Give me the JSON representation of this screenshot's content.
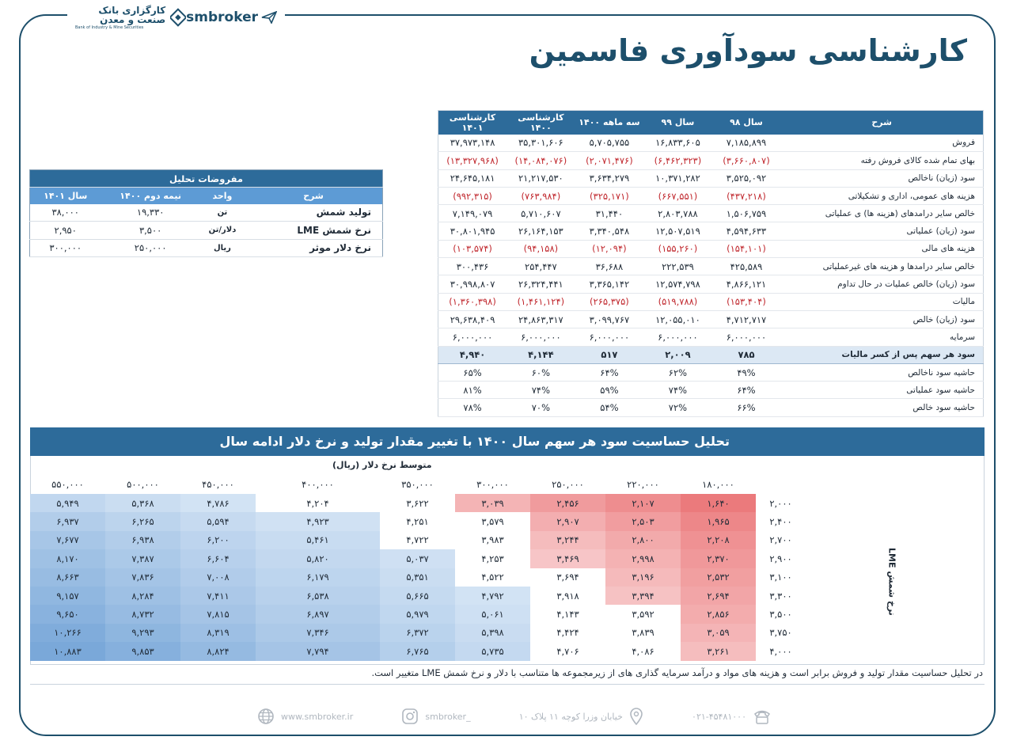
{
  "header": {
    "title": "کارشناسی سودآوری فاسمین",
    "bank_name_fa": "کارگزاری بانک صنعت و معدن",
    "bank_name_en": "Bank of Industry & Mine Securities",
    "brand": "smbroker"
  },
  "financials": {
    "headers": [
      "شرح",
      "سال ۹۸",
      "سال ۹۹",
      "سه ماهه ۱۴۰۰",
      "کارشناسی ۱۴۰۰",
      "کارشناسی ۱۴۰۱"
    ],
    "rows": [
      {
        "label": "فروش",
        "values": [
          "۷,۱۸۵,۸۹۹",
          "۱۶,۸۳۳,۶۰۵",
          "۵,۷۰۵,۷۵۵",
          "۳۵,۳۰۱,۶۰۶",
          "۳۷,۹۷۳,۱۴۸"
        ],
        "neg": false
      },
      {
        "label": "بهای تمام شده کالای فروش رفته",
        "values": [
          "(۳,۶۶۰,۸۰۷)",
          "(۶,۴۶۲,۳۲۳)",
          "(۲,۰۷۱,۴۷۶)",
          "(۱۴,۰۸۴,۰۷۶)",
          "(۱۳,۳۲۷,۹۶۸)"
        ],
        "neg": true
      },
      {
        "label": "سود (زیان) ناخالص",
        "values": [
          "۳,۵۲۵,۰۹۲",
          "۱۰,۳۷۱,۲۸۲",
          "۳,۶۳۴,۲۷۹",
          "۲۱,۲۱۷,۵۳۰",
          "۲۴,۶۴۵,۱۸۱"
        ],
        "neg": false
      },
      {
        "label": "هزینه های عمومی، اداری و تشکیلاتی",
        "values": [
          "(۴۳۷,۲۱۸)",
          "(۶۶۷,۵۵۱)",
          "(۳۲۵,۱۷۱)",
          "(۷۶۳,۹۸۴)",
          "(۹۹۲,۳۱۵)"
        ],
        "neg": true
      },
      {
        "label": "خالص سایر درامدهای (هزینه ها) ی عملیاتی",
        "values": [
          "۱,۵۰۶,۷۵۹",
          "۲,۸۰۳,۷۸۸",
          "۳۱,۴۴۰",
          "۵,۷۱۰,۶۰۷",
          "۷,۱۴۹,۰۷۹"
        ],
        "neg": false
      },
      {
        "label": "سود (زیان) عملیاتی",
        "values": [
          "۴,۵۹۴,۶۳۳",
          "۱۲,۵۰۷,۵۱۹",
          "۳,۳۴۰,۵۴۸",
          "۲۶,۱۶۴,۱۵۳",
          "۳۰,۸۰۱,۹۴۵"
        ],
        "neg": false
      },
      {
        "label": "هزینه های مالی",
        "values": [
          "(۱۵۴,۱۰۱)",
          "(۱۵۵,۲۶۰)",
          "(۱۲,۰۹۴)",
          "(۹۴,۱۵۸)",
          "(۱۰۳,۵۷۴)"
        ],
        "neg": true
      },
      {
        "label": "خالص سایر درامدها و هزینه های غیرعملیاتی",
        "values": [
          "۴۲۵,۵۸۹",
          "۲۲۲,۵۳۹",
          "۳۶,۶۸۸",
          "۲۵۴,۴۴۷",
          "۳۰۰,۴۳۶"
        ],
        "neg": false
      },
      {
        "label": "سود (زیان) خالص عملیات در حال تداوم",
        "values": [
          "۴,۸۶۶,۱۲۱",
          "۱۲,۵۷۴,۷۹۸",
          "۳,۳۶۵,۱۴۲",
          "۲۶,۳۲۴,۴۴۱",
          "۳۰,۹۹۸,۸۰۷"
        ],
        "neg": false
      },
      {
        "label": "مالیات",
        "values": [
          "(۱۵۳,۴۰۴)",
          "(۵۱۹,۷۸۸)",
          "(۲۶۵,۳۷۵)",
          "(۱,۴۶۱,۱۲۴)",
          "(۱,۳۶۰,۳۹۸)"
        ],
        "neg": true
      },
      {
        "label": "سود (زیان) خالص",
        "values": [
          "۴,۷۱۲,۷۱۷",
          "۱۲,۰۵۵,۰۱۰",
          "۳,۰۹۹,۷۶۷",
          "۲۴,۸۶۳,۳۱۷",
          "۲۹,۶۳۸,۴۰۹"
        ],
        "neg": false
      },
      {
        "label": "سرمایه",
        "values": [
          "۶,۰۰۰,۰۰۰",
          "۶,۰۰۰,۰۰۰",
          "۶,۰۰۰,۰۰۰",
          "۶,۰۰۰,۰۰۰",
          "۶,۰۰۰,۰۰۰"
        ],
        "neg": false
      }
    ],
    "eps": {
      "label": "سود هر سهم پس از کسر مالیات",
      "values": [
        "۷۸۵",
        "۲,۰۰۹",
        "۵۱۷",
        "۴,۱۴۴",
        "۴,۹۴۰"
      ]
    },
    "margins": [
      {
        "label": "حاشیه سود ناخالص",
        "values": [
          "۴۹%",
          "۶۲%",
          "۶۴%",
          "۶۰%",
          "۶۵%"
        ]
      },
      {
        "label": "حاشیه سود عملیاتی",
        "values": [
          "۶۴%",
          "۷۴%",
          "۵۹%",
          "۷۴%",
          "۸۱%"
        ]
      },
      {
        "label": "حاشیه سود خالص",
        "values": [
          "۶۶%",
          "۷۲%",
          "۵۴%",
          "۷۰%",
          "۷۸%"
        ]
      }
    ]
  },
  "assumptions": {
    "caption": "مفروضات تحلیل",
    "headers": [
      "شرح",
      "واحد",
      "نیمه دوم ۱۴۰۰",
      "سال ۱۴۰۱"
    ],
    "rows": [
      {
        "label": "تولید شمش",
        "unit": "تن",
        "h2_1400": "۱۹,۳۳۰",
        "y1401": "۳۸,۰۰۰"
      },
      {
        "label": "نرخ شمش LME",
        "unit": "دلار/تن",
        "h2_1400": "۳,۵۰۰",
        "y1401": "۲,۹۵۰"
      },
      {
        "label": "نرخ دلار موثر",
        "unit": "ریال",
        "h2_1400": "۲۵۰,۰۰۰",
        "y1401": "۳۰۰,۰۰۰"
      }
    ]
  },
  "sensitivity": {
    "title": "تحلیل حساسیت سود هر سهم سال ۱۴۰۰ با تغییر مقدار تولید و نرخ دلار ادامه سال",
    "dollar_label": "متوسط نرخ دلار (ریال)",
    "lme_label": "نرخ شمش LME",
    "columns": [
      "۵۵۰,۰۰۰",
      "۵۰۰,۰۰۰",
      "۴۵۰,۰۰۰",
      "۴۰۰,۰۰۰",
      "۳۵۰,۰۰۰",
      "۳۰۰,۰۰۰",
      "۲۵۰,۰۰۰",
      "۲۲۰,۰۰۰",
      "۱۸۰,۰۰۰"
    ],
    "rows": [
      {
        "lme": "۲,۰۰۰",
        "cells": [
          "۵,۹۴۹",
          "۵,۳۶۸",
          "۴,۷۸۶",
          "۴,۲۰۴",
          "۳,۶۲۲",
          "۳,۰۳۹",
          "۲,۴۵۶",
          "۲,۱۰۷",
          "۱,۶۴۰"
        ]
      },
      {
        "lme": "۲,۴۰۰",
        "cells": [
          "۶,۹۳۷",
          "۶,۲۶۵",
          "۵,۵۹۴",
          "۴,۹۲۳",
          "۴,۲۵۱",
          "۳,۵۷۹",
          "۲,۹۰۷",
          "۲,۵۰۳",
          "۱,۹۶۵"
        ]
      },
      {
        "lme": "۲,۷۰۰",
        "cells": [
          "۷,۶۷۷",
          "۶,۹۳۸",
          "۶,۲۰۰",
          "۵,۴۶۱",
          "۴,۷۲۲",
          "۳,۹۸۳",
          "۳,۲۴۴",
          "۲,۸۰۰",
          "۲,۲۰۸"
        ]
      },
      {
        "lme": "۲,۹۰۰",
        "cells": [
          "۸,۱۷۰",
          "۷,۳۸۷",
          "۶,۶۰۴",
          "۵,۸۲۰",
          "۵,۰۳۷",
          "۴,۲۵۳",
          "۳,۴۶۹",
          "۲,۹۹۸",
          "۲,۳۷۰"
        ]
      },
      {
        "lme": "۳,۱۰۰",
        "cells": [
          "۸,۶۶۳",
          "۷,۸۳۶",
          "۷,۰۰۸",
          "۶,۱۷۹",
          "۵,۳۵۱",
          "۴,۵۲۲",
          "۳,۶۹۴",
          "۳,۱۹۶",
          "۲,۵۳۲"
        ]
      },
      {
        "lme": "۳,۳۰۰",
        "cells": [
          "۹,۱۵۷",
          "۸,۲۸۴",
          "۷,۴۱۱",
          "۶,۵۳۸",
          "۵,۶۶۵",
          "۴,۷۹۲",
          "۳,۹۱۸",
          "۳,۳۹۴",
          "۲,۶۹۴"
        ]
      },
      {
        "lme": "۳,۵۰۰",
        "cells": [
          "۹,۶۵۰",
          "۸,۷۳۲",
          "۷,۸۱۵",
          "۶,۸۹۷",
          "۵,۹۷۹",
          "۵,۰۶۱",
          "۴,۱۴۳",
          "۳,۵۹۲",
          "۲,۸۵۶"
        ]
      },
      {
        "lme": "۳,۷۵۰",
        "cells": [
          "۱۰,۲۶۶",
          "۹,۲۹۳",
          "۸,۳۱۹",
          "۷,۳۴۶",
          "۶,۳۷۲",
          "۵,۳۹۸",
          "۴,۴۲۴",
          "۳,۸۳۹",
          "۳,۰۵۹"
        ]
      },
      {
        "lme": "۴,۰۰۰",
        "cells": [
          "۱۰,۸۸۳",
          "۹,۸۵۳",
          "۸,۸۲۴",
          "۷,۷۹۴",
          "۶,۷۶۵",
          "۵,۷۳۵",
          "۴,۷۰۶",
          "۴,۰۸۶",
          "۳,۲۶۱"
        ]
      }
    ],
    "colors": {
      "red_strong": "#eb7a7c",
      "red_light": "#fbe1e2",
      "blue_strong": "#7aa8d9",
      "blue_light": "#dce9f7"
    }
  },
  "note": "در تحلیل حساسیت مقدار تولید و فروش برابر است و هزینه های مواد و درآمد سرمایه گذاری های از زیرمجموعه ها متناسب با دلار و نرخ شمش LME متغییر است.",
  "footer": {
    "website": "www.smbroker.ir",
    "instagram": "smbroker_",
    "address": "خیابان وزرا کوچه ۱۱ پلاک ۱۰",
    "phone": "۰۲۱-۴۵۴۸۱۰۰۰"
  }
}
